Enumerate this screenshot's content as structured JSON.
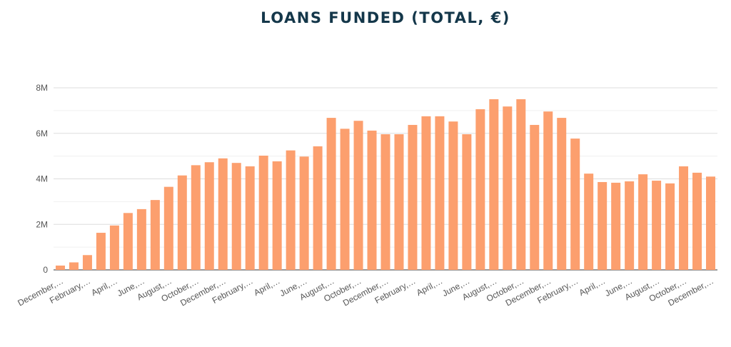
{
  "chart_data": {
    "type": "bar",
    "title": "LOANS FUNDED (TOTAL, €)",
    "categories": [
      "December,…",
      null,
      "February,…",
      null,
      "April,…",
      null,
      "June,…",
      null,
      "August,…",
      null,
      "October,…",
      null,
      "December,…",
      null,
      "February,…",
      null,
      "April,…",
      null,
      "June,…",
      null,
      "August,…",
      null,
      "October,…",
      null,
      "December,…",
      null,
      "February,…",
      null,
      "April,…",
      null,
      "June,…",
      null,
      "August,…",
      null,
      "October,…",
      null,
      "December,…",
      null,
      "February,…",
      null,
      "April,…",
      null,
      "June,…",
      null,
      "August,…",
      null,
      "October,…",
      null,
      "December,…"
    ],
    "values": [
      190000,
      330000,
      650000,
      1630000,
      1950000,
      2500000,
      2670000,
      3070000,
      3650000,
      4150000,
      4600000,
      4730000,
      4900000,
      4700000,
      4550000,
      5020000,
      4770000,
      5250000,
      4980000,
      5430000,
      6680000,
      6200000,
      6550000,
      6120000,
      5960000,
      5960000,
      6370000,
      6750000,
      6750000,
      6520000,
      5960000,
      7060000,
      7500000,
      7180000,
      7500000,
      6370000,
      6960000,
      6680000,
      5770000,
      4230000,
      3860000,
      3830000,
      3890000,
      4200000,
      3920000,
      3800000,
      4550000,
      4270000,
      4100000
    ],
    "color": "#fc9f6e",
    "ylim": [
      0,
      8000000
    ],
    "yticks": [
      0,
      {
        "value": 2000000,
        "label": "2M"
      },
      {
        "value": 4000000,
        "label": "4M"
      },
      {
        "value": 6000000,
        "label": "6M"
      },
      {
        "value": 8000000,
        "label": "8M"
      }
    ],
    "yminorticks": [
      1000000,
      3000000,
      5000000,
      7000000
    ],
    "grid": true
  }
}
